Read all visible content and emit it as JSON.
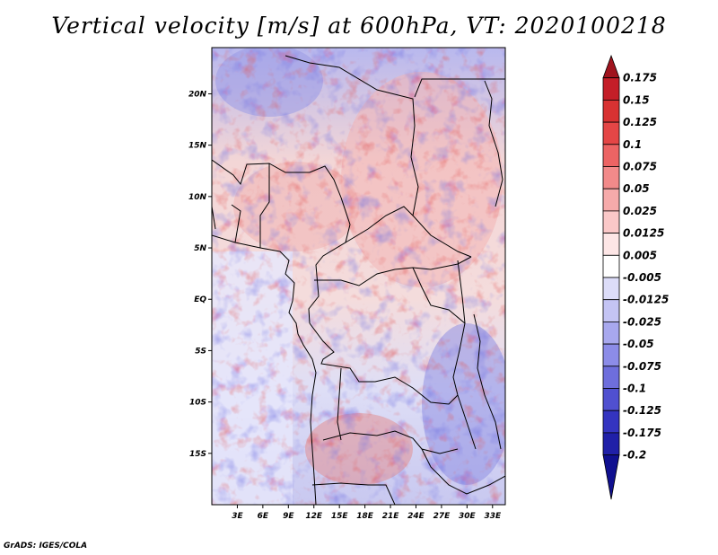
{
  "title": "Vertical velocity [m/s] at 600hPa, VT: 2020100218",
  "credit": "GrADS: IGES/COLA",
  "lat_ticks": [
    {
      "value": 20,
      "label": "20N"
    },
    {
      "value": 15,
      "label": "15N"
    },
    {
      "value": 10,
      "label": "10N"
    },
    {
      "value": 5,
      "label": "5N"
    },
    {
      "value": 0,
      "label": "EQ"
    },
    {
      "value": -5,
      "label": "5S"
    },
    {
      "value": -10,
      "label": "10S"
    },
    {
      "value": -15,
      "label": "15S"
    }
  ],
  "lon_ticks": [
    {
      "value": 3,
      "label": "3E"
    },
    {
      "value": 6,
      "label": "6E"
    },
    {
      "value": 9,
      "label": "9E"
    },
    {
      "value": 12,
      "label": "12E"
    },
    {
      "value": 15,
      "label": "15E"
    },
    {
      "value": 18,
      "label": "18E"
    },
    {
      "value": 21,
      "label": "21E"
    },
    {
      "value": 24,
      "label": "24E"
    },
    {
      "value": 27,
      "label": "27E"
    },
    {
      "value": 30,
      "label": "30E"
    },
    {
      "value": 33,
      "label": "33E"
    }
  ],
  "lon_range": [
    0,
    34.5
  ],
  "lat_range": [
    -20,
    24.5
  ],
  "colorbar": {
    "levels": [
      "0.175",
      "0.15",
      "0.125",
      "0.1",
      "0.075",
      "0.05",
      "0.025",
      "0.0125",
      "0.005",
      "-0.005",
      "-0.0125",
      "-0.025",
      "-0.05",
      "-0.075",
      "-0.1",
      "-0.125",
      "-0.175",
      "-0.2"
    ],
    "colors": [
      "#a0141e",
      "#c41e28",
      "#d83232",
      "#e44646",
      "#ec6464",
      "#f28a8a",
      "#f6aaaa",
      "#fac8c8",
      "#fde6e6",
      "#ffffff",
      "#dcdcf8",
      "#c4c4f4",
      "#a8a8ee",
      "#8c8ce8",
      "#6e6edc",
      "#5050d0",
      "#3434c0",
      "#2020a8",
      "#101090"
    ]
  }
}
